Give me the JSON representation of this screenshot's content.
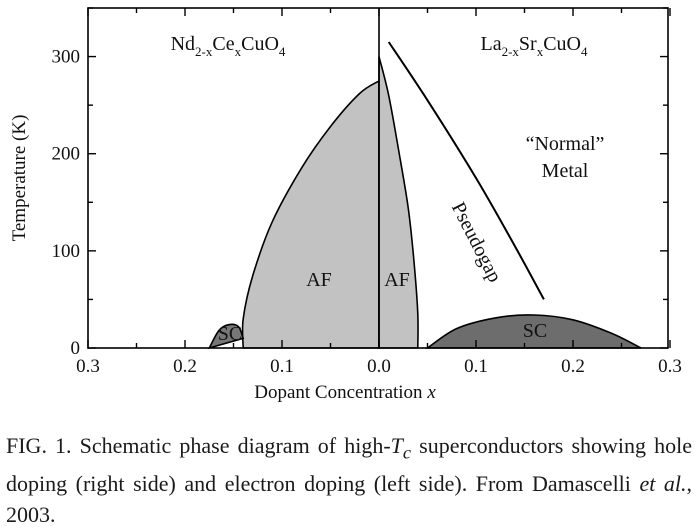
{
  "chart_data": {
    "type": "area",
    "xlabel_main": "Dopant Concentration",
    "xlabel_var": "x",
    "ylabel": "Temperature (K)",
    "ylim": [
      0,
      350
    ],
    "x_left_range": [
      0.3,
      0.0
    ],
    "x_right_range": [
      0.0,
      0.3
    ],
    "x_tick_labels_left": [
      "0.3",
      "0.2",
      "0.1",
      "0.0"
    ],
    "x_tick_labels_right": [
      "0.1",
      "0.2",
      "0.3"
    ],
    "y_ticks": [
      0,
      100,
      200,
      300
    ],
    "y_tick_labels": [
      "0",
      "100",
      "200",
      "300"
    ],
    "left_compound": {
      "parts": [
        "Nd",
        "2-x",
        "Ce",
        "x",
        "CuO",
        "4"
      ]
    },
    "right_compound": {
      "parts": [
        "La",
        "2-x",
        "Sr",
        "x",
        "CuO",
        "4"
      ]
    },
    "regions": [
      {
        "label": "AF",
        "side": "electron",
        "color": "#c2c2c2",
        "boundary_x": [
          0.0,
          0.02,
          0.05,
          0.08,
          0.11,
          0.13,
          0.14,
          0.14
        ],
        "boundary_t": [
          275,
          262,
          228,
          185,
          130,
          75,
          30,
          0
        ]
      },
      {
        "label": "AF",
        "side": "hole",
        "color": "#c2c2c2",
        "boundary_x": [
          0.0,
          0.01,
          0.02,
          0.03,
          0.036,
          0.04,
          0.04
        ],
        "boundary_t": [
          300,
          260,
          205,
          145,
          90,
          35,
          0
        ]
      },
      {
        "label": "SC",
        "side": "electron",
        "color": "#777777",
        "boundary_x": [
          0.175,
          0.165,
          0.155,
          0.145,
          0.14
        ],
        "boundary_t": [
          0,
          18,
          24,
          22,
          10
        ]
      },
      {
        "label": "SC",
        "side": "hole",
        "color": "#6d6d6d",
        "boundary_x": [
          0.05,
          0.08,
          0.12,
          0.16,
          0.2,
          0.24,
          0.27
        ],
        "boundary_t": [
          0,
          20,
          31,
          34,
          29,
          15,
          0
        ]
      }
    ],
    "pseudogap_line": {
      "label": "Pseudogap",
      "x": [
        0.01,
        0.05,
        0.1,
        0.14,
        0.17
      ],
      "t": [
        315,
        255,
        175,
        105,
        50
      ]
    },
    "normal_metal_label": [
      "“Normal”",
      "Metal"
    ]
  },
  "caption": {
    "prefix": "FIG. 1. Schematic phase diagram of high-",
    "tc_main": "T",
    "tc_sub": "c",
    "middle": " superconductors showing hole doping (right side) and electron doping (left side). From Damascelli ",
    "etal": "et al.",
    "suffix": ", 2003."
  }
}
